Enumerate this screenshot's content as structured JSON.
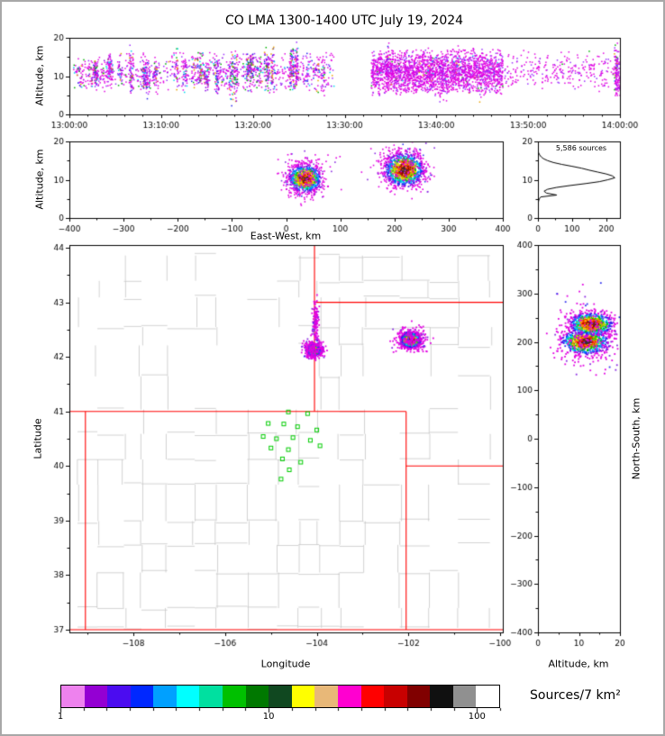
{
  "title": "CO LMA 1300-1400 UTC July 19, 2024",
  "style": {
    "background": "#ffffff",
    "frame_border": "#a8a8a8",
    "axis_color": "#000000",
    "density_palette": [
      "#e100e1",
      "#8a00e6",
      "#2222ee",
      "#0080ff",
      "#00d5ee",
      "#00c000",
      "#9acd00",
      "#ffd000",
      "#ff8000",
      "#ff1a00",
      "#c00000",
      "#7a0000",
      "#303030"
    ],
    "fringe_colors": [
      "#e100e1",
      "#8a2be2",
      "#3333ee"
    ]
  },
  "colorbar": {
    "label": "Sources/7 km²",
    "tick_labels": [
      "1",
      "10",
      "100"
    ],
    "tick_cells": [
      0,
      9,
      18
    ],
    "cells": [
      "#ee82ee",
      "#9400d3",
      "#4b0cf0",
      "#0028ff",
      "#00a0ff",
      "#00ffff",
      "#00e0a0",
      "#00c000",
      "#007800",
      "#104820",
      "#ffff00",
      "#e8b878",
      "#ff00d0",
      "#ff0000",
      "#c80000",
      "#800000",
      "#101010",
      "#909090",
      "#ffffff"
    ]
  },
  "chart_data": [
    {
      "id": "time_height",
      "type": "scatter",
      "xlabel": "",
      "ylabel": "Altitude, km",
      "xlim": [
        0,
        3600
      ],
      "ylim": [
        0,
        20
      ],
      "xticks": {
        "values": [
          0,
          600,
          1200,
          1800,
          2400,
          3000,
          3600
        ],
        "labels": [
          "13:00:00",
          "13:10:00",
          "13:20:00",
          "13:30:00",
          "13:40:00",
          "13:50:00",
          "14:00:00"
        ]
      },
      "yticks": {
        "values": [
          0,
          10,
          20
        ],
        "labels": [
          "0",
          "10",
          "20"
        ]
      },
      "xminor_step": 120,
      "yminor_step": 5,
      "segments": [
        {
          "t0": 20,
          "t1": 320,
          "streaks": 8,
          "diffuse": 130,
          "alt": [
            6,
            16
          ],
          "colorful": 0.22
        },
        {
          "t0": 320,
          "t1": 800,
          "streaks": 11,
          "diffuse": 170,
          "alt": [
            6,
            16.5
          ],
          "colorful": 0.28
        },
        {
          "t0": 800,
          "t1": 1260,
          "streaks": 13,
          "diffuse": 280,
          "alt": [
            5.5,
            17
          ],
          "colorful": 0.34
        },
        {
          "t0": 1260,
          "t1": 1730,
          "streaks": 11,
          "diffuse": 240,
          "alt": [
            5.5,
            17
          ],
          "colorful": 0.3
        },
        {
          "t0": 1970,
          "t1": 2830,
          "streaks": 7,
          "diffuse": 2300,
          "alt": [
            5,
            17.5
          ],
          "colorful": 0.05
        },
        {
          "t0": 2840,
          "t1": 3555,
          "streaks": 0,
          "diffuse": 270,
          "alt": [
            6,
            17
          ],
          "colorful": 0.02
        },
        {
          "t0": 3565,
          "t1": 3600,
          "streaks": 2,
          "diffuse": 90,
          "alt": [
            3.5,
            17
          ],
          "colorful": 0.12
        }
      ]
    },
    {
      "id": "ew_height",
      "type": "scatter",
      "xlabel": "East-West, km",
      "ylabel": "Altitude, km",
      "xlim": [
        -400,
        400
      ],
      "ylim": [
        0,
        20
      ],
      "xticks": {
        "values": [
          -400,
          -300,
          -200,
          -100,
          0,
          100,
          200,
          300,
          400
        ],
        "labels": [
          "−400",
          "−300",
          "−200",
          "−100",
          "0",
          "100",
          "200",
          "300",
          "400"
        ]
      },
      "yticks": {
        "values": [
          0,
          10,
          20
        ],
        "labels": [
          "0",
          "10",
          "20"
        ]
      },
      "xminor_step": 50,
      "yminor_step": 5,
      "clusters": [
        {
          "cx": 35,
          "cy": 10.3,
          "sx": 15,
          "sy": 1.8,
          "n": 950
        },
        {
          "cx": 218,
          "cy": 12.6,
          "sx": 18,
          "sy": 2.2,
          "n": 1150
        },
        {
          "cx": 35,
          "cy": 10.6,
          "sx": 24,
          "sy": 3.0,
          "n": 160,
          "fringe": true
        },
        {
          "cx": 218,
          "cy": 12.9,
          "sx": 28,
          "sy": 3.4,
          "n": 200,
          "fringe": true
        }
      ]
    },
    {
      "id": "altitude_histogram",
      "type": "line",
      "annotation": "5,586 sources",
      "xlabel": "",
      "ylabel": "",
      "xlim": [
        0,
        240
      ],
      "ylim": [
        0,
        20
      ],
      "xticks": {
        "values": [
          0,
          100,
          200
        ],
        "labels": [
          "0",
          "100",
          "200"
        ]
      },
      "yticks": {
        "values": [
          0,
          10,
          20
        ],
        "labels": [
          "0",
          "10",
          "20"
        ]
      },
      "xminor_step": 50,
      "yminor_step": 5,
      "line_color": "#000000",
      "alt_bins": [
        0,
        1,
        2,
        3,
        4,
        4.5,
        5,
        5.5,
        6,
        6.5,
        7,
        7.5,
        8,
        8.5,
        9,
        9.5,
        10,
        10.5,
        11,
        11.5,
        12,
        12.5,
        13,
        13.5,
        14,
        14.5,
        15,
        15.5,
        16,
        16.5,
        17,
        17.5,
        18,
        20
      ],
      "counts": [
        0,
        0,
        0,
        0,
        1,
        2,
        4,
        8,
        55,
        25,
        18,
        28,
        55,
        95,
        140,
        180,
        205,
        225,
        218,
        200,
        175,
        150,
        128,
        100,
        70,
        45,
        28,
        16,
        9,
        5,
        2,
        1,
        0,
        0
      ]
    },
    {
      "id": "map",
      "type": "scatter",
      "xlabel": "Longitude",
      "ylabel": "Latitude",
      "xlim": [
        -109.4,
        -99.94
      ],
      "ylim": [
        36.95,
        44.05
      ],
      "xticks": {
        "values": [
          -108,
          -106,
          -104,
          -102,
          -100
        ],
        "labels": [
          "−108",
          "−106",
          "−104",
          "−102",
          "−100"
        ]
      },
      "yticks": {
        "values": [
          37,
          38,
          39,
          40,
          41,
          42,
          43,
          44
        ],
        "labels": [
          "37",
          "38",
          "39",
          "40",
          "41",
          "42",
          "43",
          "44"
        ]
      },
      "xminor_step": 1,
      "yminor_step": 0.5,
      "state_border_color": "#ff0000",
      "county_color": "#c6c6c6",
      "station_color": "#00cc00",
      "state_borders": [
        [
          [
            -109.4,
            41
          ],
          [
            -102.05,
            41
          ]
        ],
        [
          [
            -109.05,
            41
          ],
          [
            -109.05,
            37
          ]
        ],
        [
          [
            -109.4,
            37
          ],
          [
            -99.94,
            37
          ]
        ],
        [
          [
            -102.05,
            41
          ],
          [
            -102.05,
            37
          ]
        ],
        [
          [
            -104.05,
            44.05
          ],
          [
            -104.05,
            41
          ]
        ],
        [
          [
            -104.05,
            43
          ],
          [
            -99.94,
            43
          ]
        ],
        [
          [
            -102.05,
            40
          ],
          [
            -99.94,
            40
          ]
        ]
      ],
      "stations": [
        [
          -104.62,
          40.99
        ],
        [
          -104.2,
          40.96
        ],
        [
          -105.06,
          40.78
        ],
        [
          -104.72,
          40.77
        ],
        [
          -104.42,
          40.72
        ],
        [
          -104.0,
          40.66
        ],
        [
          -105.17,
          40.54
        ],
        [
          -104.88,
          40.5
        ],
        [
          -104.52,
          40.52
        ],
        [
          -104.14,
          40.47
        ],
        [
          -105.0,
          40.33
        ],
        [
          -104.62,
          40.3
        ],
        [
          -103.93,
          40.37
        ],
        [
          -104.75,
          40.13
        ],
        [
          -104.35,
          40.07
        ],
        [
          -104.6,
          39.93
        ],
        [
          -104.78,
          39.76
        ]
      ],
      "clusters": [
        {
          "cx": -104.06,
          "cy": 42.12,
          "sx": 0.07,
          "sy": 0.05,
          "n": 800
        },
        {
          "cx": -101.95,
          "cy": 42.31,
          "sx": 0.11,
          "sy": 0.07,
          "n": 1000
        },
        {
          "cx": -104.03,
          "cy": 42.6,
          "sx": 0.035,
          "sy": 0.22,
          "n": 130,
          "fringe": true
        },
        {
          "cx": -104.06,
          "cy": 42.13,
          "sx": 0.12,
          "sy": 0.09,
          "n": 150,
          "fringe": true
        },
        {
          "cx": -101.95,
          "cy": 42.32,
          "sx": 0.19,
          "sy": 0.11,
          "n": 180,
          "fringe": true
        }
      ]
    },
    {
      "id": "ns_height",
      "type": "scatter",
      "xlabel": "Altitude, km",
      "ylabel": "North-South, km",
      "xlim": [
        0,
        20
      ],
      "ylim": [
        -400,
        400
      ],
      "xticks": {
        "values": [
          0,
          10,
          20
        ],
        "labels": [
          "0",
          "10",
          "20"
        ]
      },
      "yticks": {
        "values": [
          400,
          300,
          200,
          100,
          0,
          -100,
          -200,
          -300,
          -400
        ],
        "labels": [
          "400",
          "300",
          "200",
          "100",
          "0",
          "−100",
          "−200",
          "−300",
          "−400"
        ]
      },
      "xminor_step": 5,
      "yminor_step": 50,
      "clusters": [
        {
          "cx": 11.5,
          "cy": 200,
          "sx": 2.9,
          "sy": 13,
          "n": 700
        },
        {
          "cx": 13.0,
          "cy": 237,
          "sx": 2.7,
          "sy": 12,
          "n": 700
        },
        {
          "cx": 12.0,
          "cy": 215,
          "sx": 3.8,
          "sy": 38,
          "n": 220,
          "fringe": true
        }
      ]
    }
  ]
}
